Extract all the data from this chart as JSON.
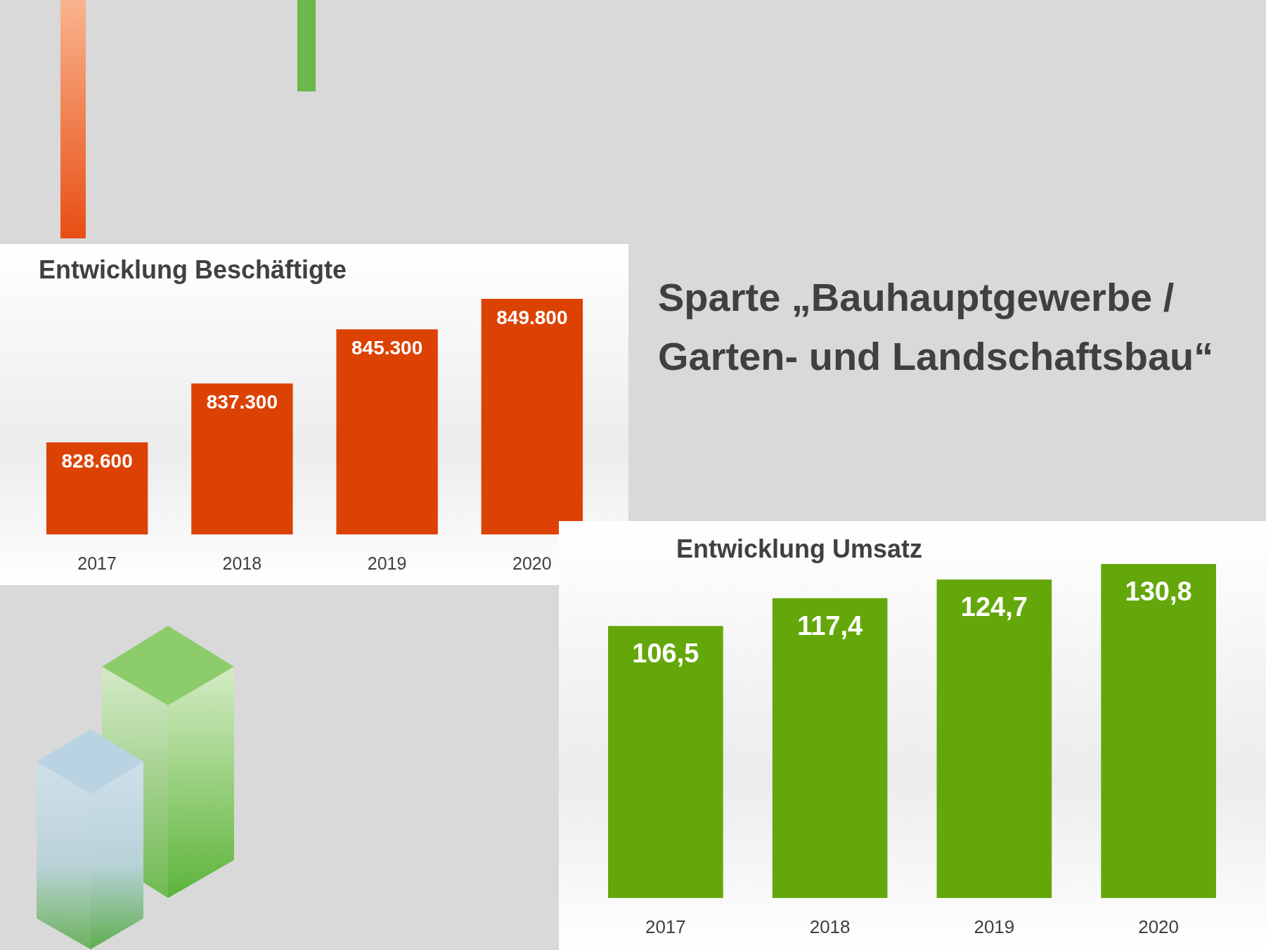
{
  "chart_data": [
    {
      "type": "bar",
      "title": "Entwicklung Beschäftigte",
      "categories": [
        "2017",
        "2018",
        "2019",
        "2020"
      ],
      "values": [
        828600,
        837300,
        845300,
        849800
      ],
      "value_labels": [
        "828.600",
        "837.300",
        "845.300",
        "849.800"
      ],
      "color": "#dc4204",
      "ylim": [
        815000,
        849800
      ],
      "tick_labels": "x"
    },
    {
      "type": "other",
      "title": "Sparte „Bauhauptgewerbe / Garten- und Landschaftsbau“"
    },
    {
      "type": "bar",
      "title": "Entwicklung Umsatz",
      "categories": [
        "2017",
        "2018",
        "2019",
        "2020"
      ],
      "values": [
        106.5,
        117.4,
        124.7,
        130.8
      ],
      "value_labels": [
        "106,5",
        "117,4",
        "124,7",
        "130,8"
      ],
      "color": "#64a70b",
      "ylim": [
        0,
        130.8
      ],
      "tick_labels": "x"
    }
  ]
}
